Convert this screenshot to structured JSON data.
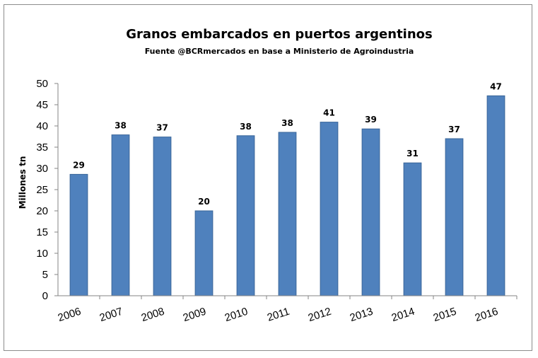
{
  "chart_data": {
    "type": "bar",
    "title": "Granos embarcados en puertos argentinos",
    "subtitle": "Fuente @BCRmercados en base a Ministerio de Agroindustria",
    "xlabel": "",
    "ylabel": "Millones tn",
    "ylim": [
      0,
      50
    ],
    "yticks": [
      "0",
      "5",
      "10",
      "15",
      "20",
      "25",
      "30",
      "35",
      "40",
      "45",
      "50"
    ],
    "categories": [
      "2006",
      "2007",
      "2008",
      "2009",
      "2010",
      "2011",
      "2012",
      "2013",
      "2014",
      "2015",
      "2016"
    ],
    "values": [
      28.6,
      37.9,
      37.4,
      20.0,
      37.7,
      38.5,
      40.9,
      39.3,
      31.3,
      37.0,
      47.1
    ],
    "data_labels": [
      "29",
      "38",
      "37",
      "20",
      "38",
      "38",
      "41",
      "39",
      "31",
      "37",
      "47"
    ],
    "bar_color": "#4f81bd",
    "bar_edge_color": "#3a6699",
    "grid": false,
    "legend": "none"
  }
}
